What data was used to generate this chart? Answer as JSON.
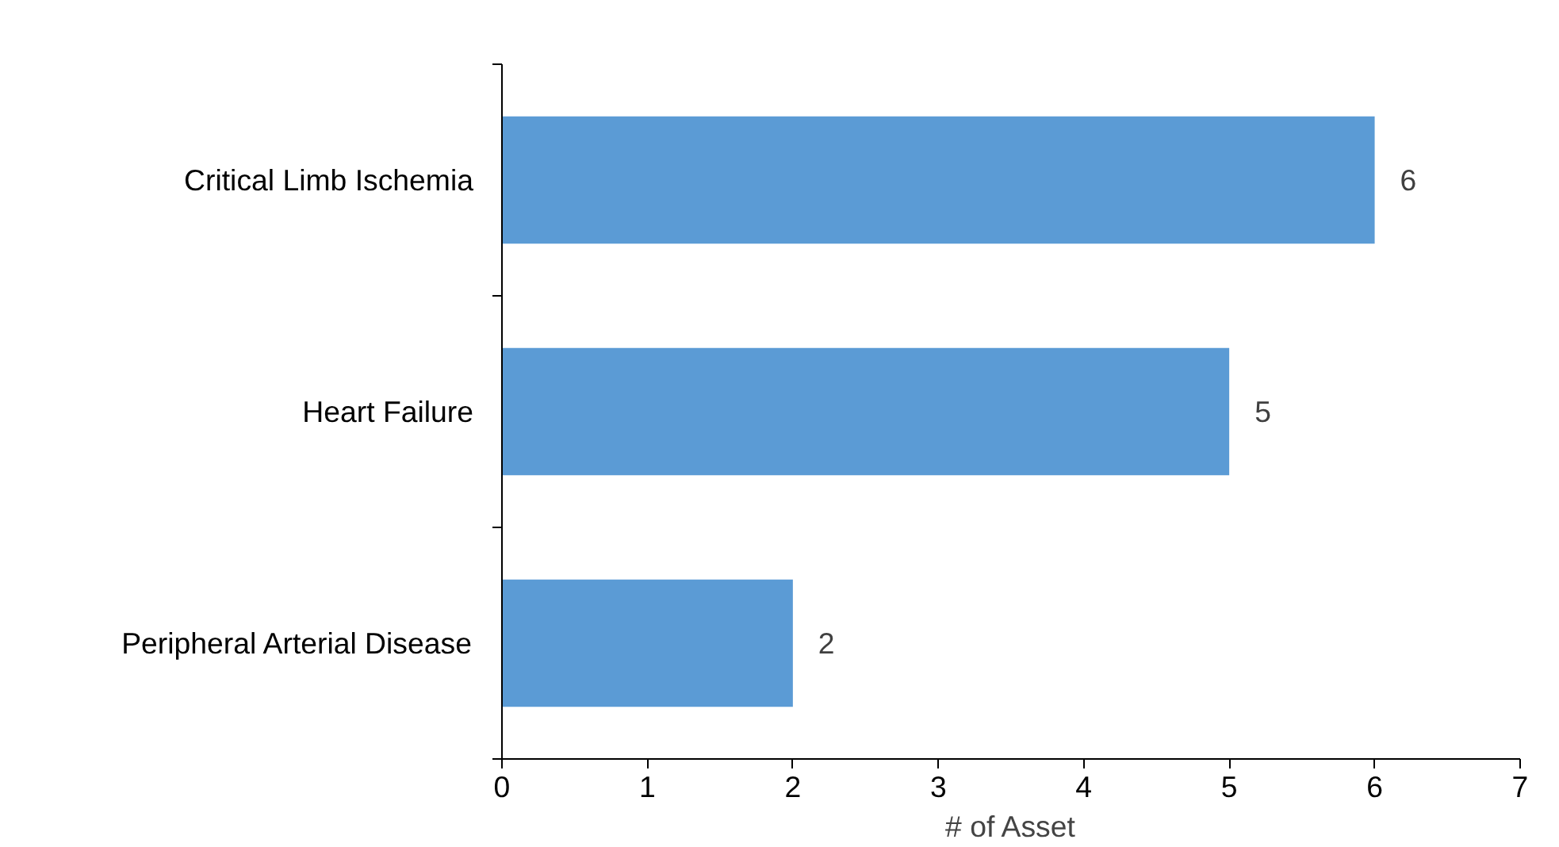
{
  "chart_data": {
    "type": "bar",
    "orientation": "horizontal",
    "xlabel": "# of Asset",
    "categories": [
      "Critical Limb Ischemia",
      "Heart Failure",
      "Peripheral Arterial Disease"
    ],
    "values": [
      6,
      5,
      2
    ],
    "color": "#5b9bd5",
    "xlim": [
      0,
      7
    ],
    "xticks": [
      0,
      1,
      2,
      3,
      4,
      5,
      6,
      7
    ],
    "grid": false,
    "data_labels": true
  }
}
